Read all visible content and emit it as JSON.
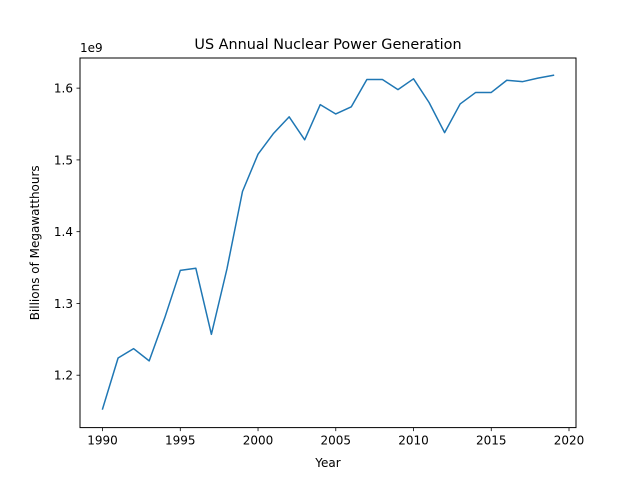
{
  "chart_data": {
    "type": "line",
    "title": "US Annual Nuclear Power Generation",
    "xlabel": "Year",
    "ylabel": "Billions of Megawatthours",
    "y_offset_label": "1e9",
    "grid": false,
    "xlim": [
      1988.55,
      2020.45
    ],
    "ylim": [
      1.127,
      1.642
    ],
    "x_ticks": [
      1990,
      1995,
      2000,
      2005,
      2010,
      2015,
      2020
    ],
    "y_ticks": [
      1.2,
      1.3,
      1.4,
      1.5,
      1.6
    ],
    "y_tick_labels": [
      "1.2",
      "1.3",
      "1.4",
      "1.5",
      "1.6"
    ],
    "series": [
      {
        "color": "#1f77b4",
        "x": [
          1990,
          1991,
          1992,
          1993,
          1994,
          1995,
          1996,
          1997,
          1998,
          1999,
          2000,
          2001,
          2002,
          2003,
          2004,
          2005,
          2006,
          2007,
          2008,
          2009,
          2010,
          2011,
          2012,
          2013,
          2014,
          2015,
          2016,
          2017,
          2018,
          2019
        ],
        "values": [
          1.153,
          1.224,
          1.237,
          1.22,
          1.28,
          1.346,
          1.349,
          1.257,
          1.348,
          1.456,
          1.508,
          1.537,
          1.56,
          1.528,
          1.577,
          1.564,
          1.574,
          1.612,
          1.612,
          1.598,
          1.613,
          1.58,
          1.538,
          1.578,
          1.594,
          1.594,
          1.611,
          1.609,
          1.614,
          1.618
        ]
      }
    ]
  }
}
